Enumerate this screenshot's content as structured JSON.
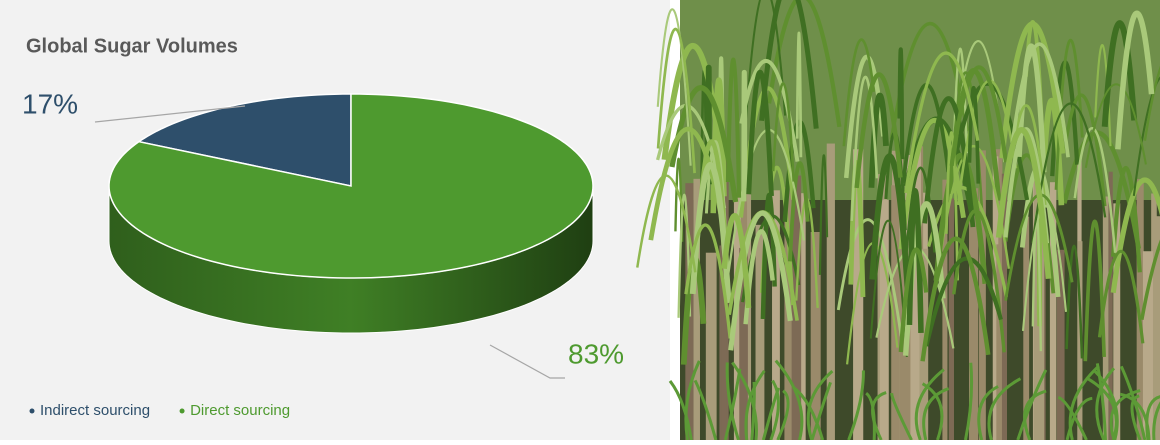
{
  "chart_data": {
    "type": "pie",
    "title": "Global Sugar Volumes",
    "categories": [
      "Indirect sourcing",
      "Direct sourcing"
    ],
    "values": [
      17,
      83
    ],
    "value_labels": [
      "17%",
      "83%"
    ],
    "colors": [
      "#2e4f6b",
      "#4e9a2f"
    ]
  }
}
